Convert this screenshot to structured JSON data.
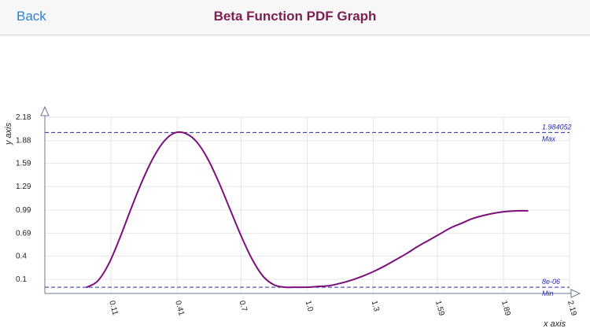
{
  "nav": {
    "back_label": "Back",
    "title": "Beta Function PDF Graph"
  },
  "chart_data": {
    "type": "line",
    "title": "",
    "xlabel": "x axis",
    "ylabel": "y axis",
    "x_ticks": [
      "0.11",
      "0.41",
      "0.7",
      "1.0",
      "1.3",
      "1.59",
      "1.89",
      "2.19"
    ],
    "y_ticks": [
      "0.1",
      "0.4",
      "0.69",
      "0.99",
      "1.29",
      "1.59",
      "1.88",
      "2.18"
    ],
    "xlim": [
      -0.19,
      2.19
    ],
    "ylim": [
      -0.08,
      2.18
    ],
    "grid": true,
    "reference_lines": [
      {
        "value_label": "1.984052",
        "name": "Max",
        "y": 1.984052
      },
      {
        "value_label": "8e-06",
        "name": "Min",
        "y": 8e-06
      }
    ],
    "series": [
      {
        "color": "#7b0f7b",
        "points": [
          [
            0.0,
            0.0
          ],
          [
            0.05,
            0.08
          ],
          [
            0.1,
            0.3
          ],
          [
            0.15,
            0.63
          ],
          [
            0.2,
            1.0
          ],
          [
            0.25,
            1.35
          ],
          [
            0.3,
            1.65
          ],
          [
            0.35,
            1.87
          ],
          [
            0.4,
            1.98
          ],
          [
            0.45,
            1.97
          ],
          [
            0.5,
            1.86
          ],
          [
            0.55,
            1.64
          ],
          [
            0.6,
            1.34
          ],
          [
            0.65,
            1.0
          ],
          [
            0.7,
            0.66
          ],
          [
            0.75,
            0.36
          ],
          [
            0.8,
            0.14
          ],
          [
            0.85,
            0.03
          ],
          [
            0.9,
            0.0
          ],
          [
            0.95,
            0.0
          ],
          [
            1.0,
            0.0
          ],
          [
            1.05,
            0.01
          ],
          [
            1.1,
            0.02
          ],
          [
            1.15,
            0.05
          ],
          [
            1.2,
            0.09
          ],
          [
            1.25,
            0.14
          ],
          [
            1.3,
            0.2
          ],
          [
            1.35,
            0.27
          ],
          [
            1.4,
            0.35
          ],
          [
            1.45,
            0.43
          ],
          [
            1.5,
            0.52
          ],
          [
            1.55,
            0.6
          ],
          [
            1.6,
            0.68
          ],
          [
            1.65,
            0.76
          ],
          [
            1.7,
            0.82
          ],
          [
            1.75,
            0.88
          ],
          [
            1.8,
            0.92
          ],
          [
            1.85,
            0.95
          ],
          [
            1.9,
            0.97
          ],
          [
            1.95,
            0.98
          ],
          [
            2.0,
            0.98
          ]
        ]
      }
    ]
  },
  "colors": {
    "title": "#7a1f4f",
    "back": "#2f80d1",
    "reference": "#2a2ab8",
    "curve": "#7b0f7b"
  }
}
